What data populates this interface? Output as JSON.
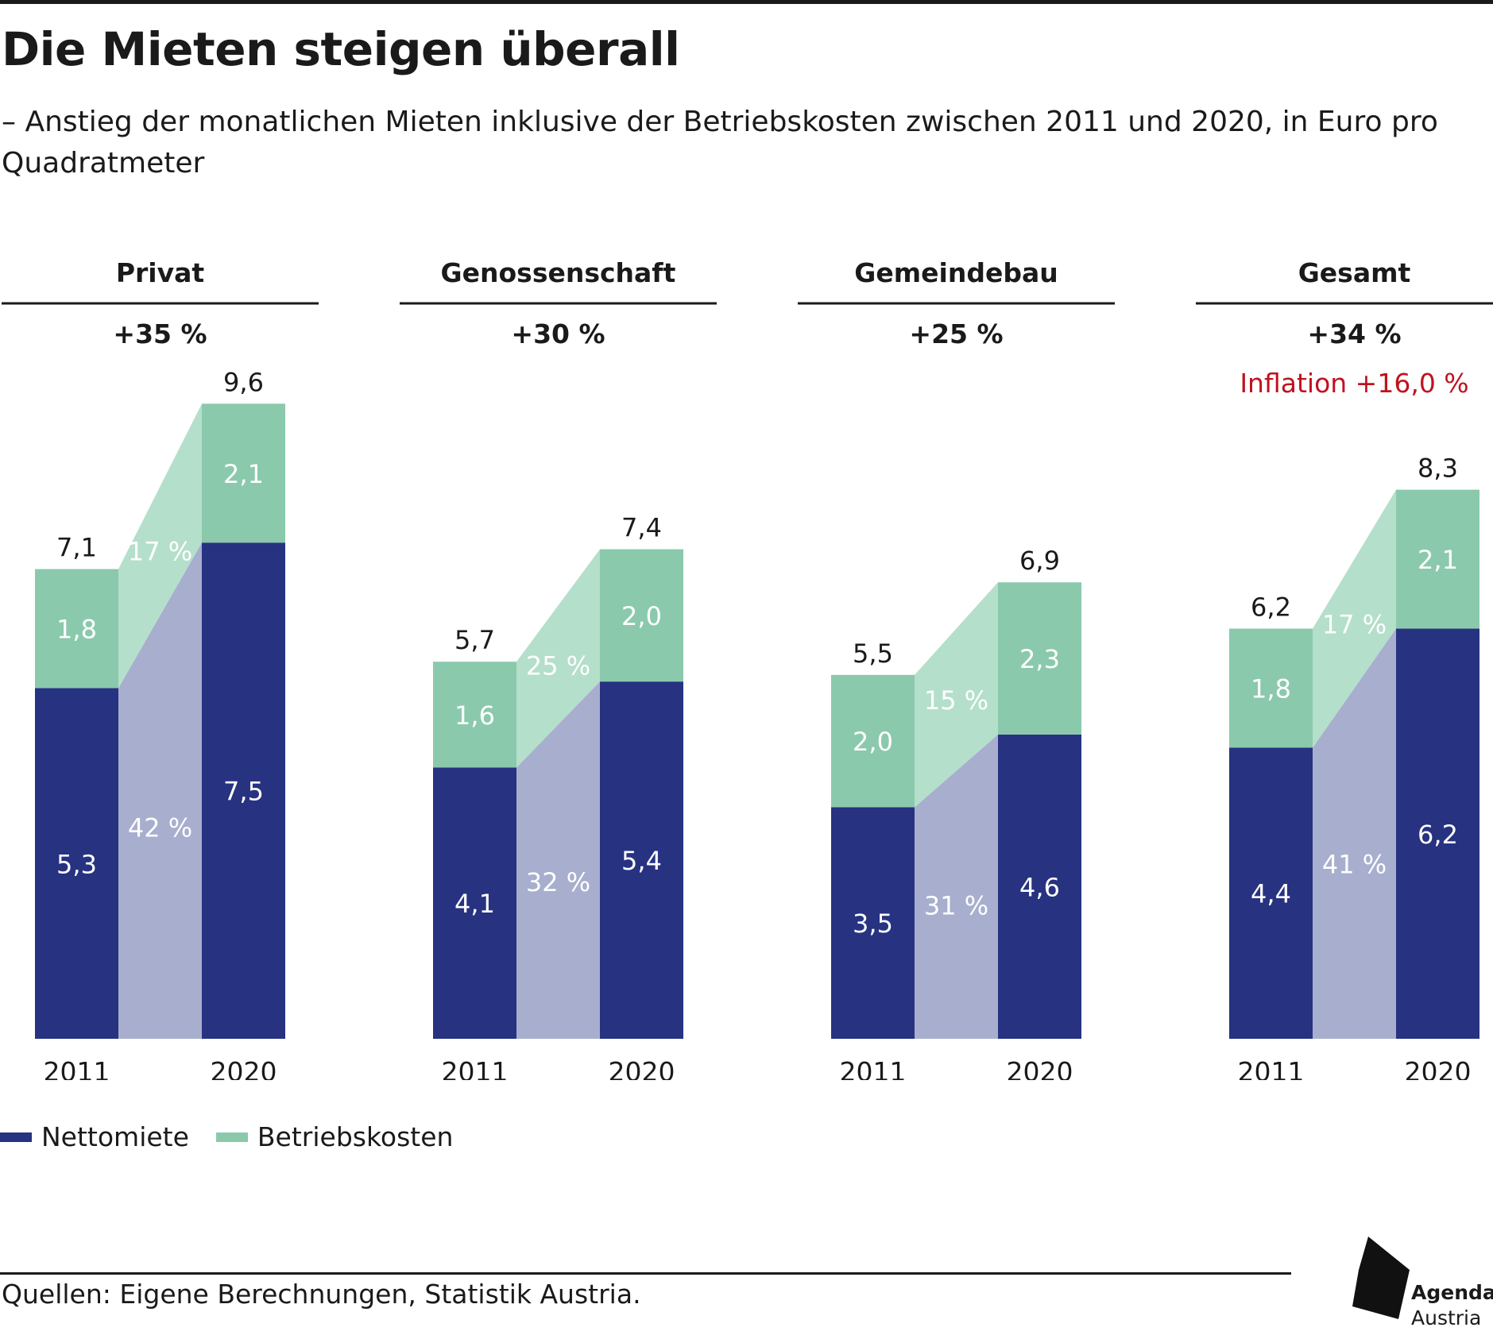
{
  "title": "Die Mieten steigen überall",
  "subtitle": "– Anstieg der monatlichen Mieten inklusive der Betriebskosten zwischen 2011 und 2020, in Euro pro Quadratmeter",
  "legend": {
    "net_label": "Nettomiete",
    "costs_label": "Betriebskosten"
  },
  "source": "Quellen: Eigene Berechnungen, Statistik Austria.",
  "logo": {
    "line1": "Agenda",
    "line2": "Austria"
  },
  "colors": {
    "net": "#273281",
    "costs": "#8bc9ad",
    "net_band": "#a8aece",
    "costs_band": "#b4dfcb",
    "inflation": "#c0121f",
    "text_dark": "#1a1a1a",
    "text_light": "#ffffff"
  },
  "chart_data": {
    "type": "bar",
    "stacked": true,
    "series_names": [
      "Nettomiete",
      "Betriebskosten"
    ],
    "ylim": [
      0,
      10
    ],
    "panels": [
      {
        "name": "Privat",
        "change": "+35 %",
        "note": "",
        "bars": [
          {
            "year": "2011",
            "net": 5.3,
            "net_label": "5,3",
            "costs": 1.8,
            "costs_label": "1,8",
            "total_label": "7,1"
          },
          {
            "year": "2020",
            "net": 7.5,
            "net_label": "7,5",
            "costs": 2.1,
            "costs_label": "2,1",
            "total_label": "9,6"
          }
        ],
        "net_change": "42 %",
        "costs_change": "17 %"
      },
      {
        "name": "Genossenschaft",
        "change": "+30 %",
        "note": "",
        "bars": [
          {
            "year": "2011",
            "net": 4.1,
            "net_label": "4,1",
            "costs": 1.6,
            "costs_label": "1,6",
            "total_label": "5,7"
          },
          {
            "year": "2020",
            "net": 5.4,
            "net_label": "5,4",
            "costs": 2.0,
            "costs_label": "2,0",
            "total_label": "7,4"
          }
        ],
        "net_change": "32 %",
        "costs_change": "25 %"
      },
      {
        "name": "Gemeindebau",
        "change": "+25 %",
        "note": "",
        "bars": [
          {
            "year": "2011",
            "net": 3.5,
            "net_label": "3,5",
            "costs": 2.0,
            "costs_label": "2,0",
            "total_label": "5,5"
          },
          {
            "year": "2020",
            "net": 4.6,
            "net_label": "4,6",
            "costs": 2.3,
            "costs_label": "2,3",
            "total_label": "6,9"
          }
        ],
        "net_change": "31 %",
        "costs_change": "15 %"
      },
      {
        "name": "Gesamt",
        "change": "+34 %",
        "note": "Inflation +16,0 %",
        "bars": [
          {
            "year": "2011",
            "net": 4.4,
            "net_label": "4,4",
            "costs": 1.8,
            "costs_label": "1,8",
            "total_label": "6,2"
          },
          {
            "year": "2020",
            "net": 6.2,
            "net_label": "6,2",
            "costs": 2.1,
            "costs_label": "2,1",
            "total_label": "8,3"
          }
        ],
        "net_change": "41 %",
        "costs_change": "17 %"
      }
    ]
  }
}
